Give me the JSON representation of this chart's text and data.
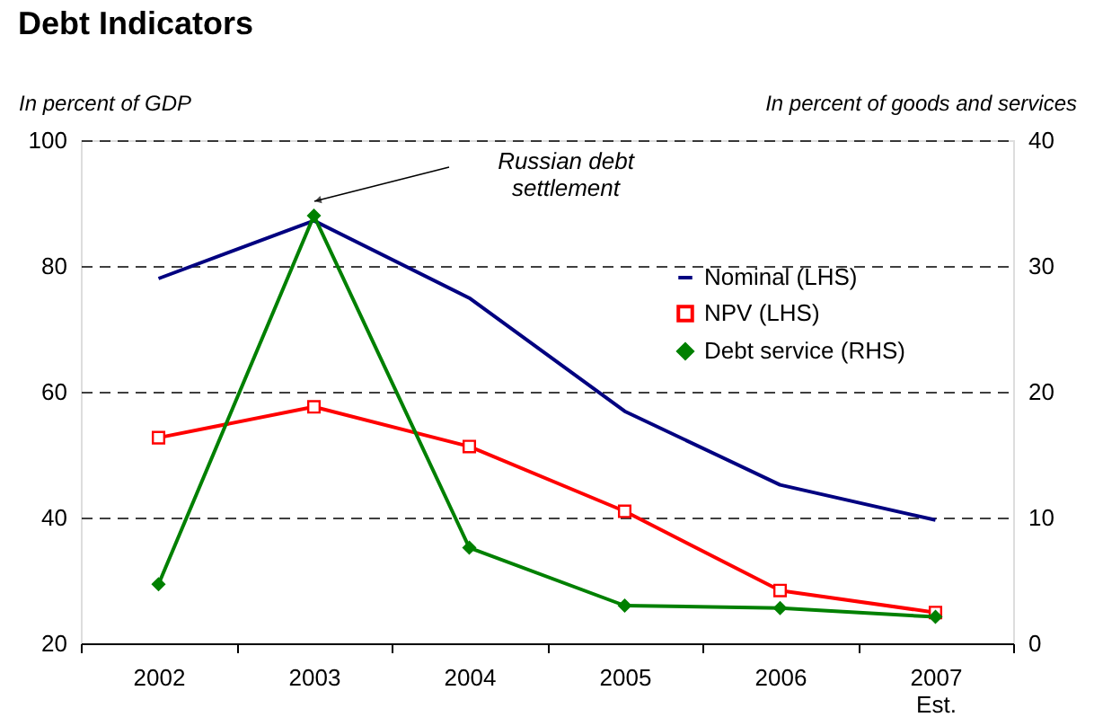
{
  "chart_data": {
    "type": "line",
    "title": "Debt Indicators",
    "ylabel": "In percent of GDP",
    "y2label": "In percent of goods and services",
    "categories": [
      "2002",
      "2003",
      "2004",
      "2005",
      "2006",
      "2007\nEst."
    ],
    "series": [
      {
        "name": "Nominal (LHS)",
        "color": "#000080",
        "marker": "none",
        "values": [
          78,
          87.2,
          74.9,
          56.9,
          45.2,
          39.6
        ]
      },
      {
        "name": "NPV (LHS)",
        "color": "#ff0000",
        "marker": "square",
        "values": [
          52.7,
          57.6,
          51.3,
          41,
          28.4,
          24.9
        ]
      },
      {
        "name": "Debt service (RHS)",
        "color": "#008000",
        "marker": "diamond",
        "axis": "y2",
        "values": [
          4.7,
          34.0,
          7.6,
          3.0,
          2.8,
          2.1
        ]
      }
    ],
    "ylim": [
      20,
      100
    ],
    "yticks": [
      20,
      40,
      60,
      80,
      100
    ],
    "y2lim": [
      0,
      40
    ],
    "y2ticks": [
      0,
      10,
      20,
      30,
      40
    ],
    "grid": "y",
    "legend": "right",
    "line_style": "solid",
    "annotations": [
      "Russian debt\nsettlement"
    ]
  }
}
